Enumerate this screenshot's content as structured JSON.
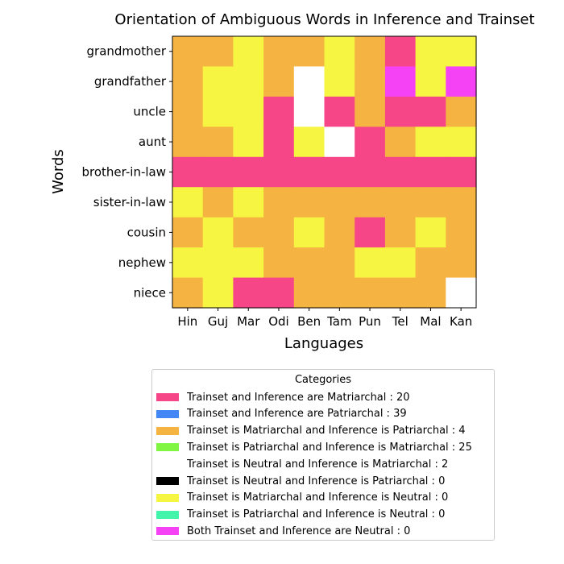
{
  "chart_data": {
    "type": "heatmap",
    "title": "Orientation of Ambiguous Words in Inference and Trainset",
    "xlabel": "Languages",
    "ylabel": "Words",
    "x": [
      "Hin",
      "Guj",
      "Mar",
      "Odi",
      "Ben",
      "Tam",
      "Pun",
      "Tel",
      "Mal",
      "Kan"
    ],
    "y": [
      "grandmother",
      "grandfather",
      "uncle",
      "aunt",
      "brother-in-law",
      "sister-in-law",
      "cousin",
      "nephew",
      "niece"
    ],
    "values": [
      [
        2,
        2,
        6,
        2,
        2,
        6,
        2,
        0,
        6,
        6
      ],
      [
        2,
        6,
        6,
        2,
        9,
        6,
        2,
        8,
        6,
        8
      ],
      [
        2,
        6,
        6,
        0,
        9,
        0,
        2,
        0,
        0,
        2
      ],
      [
        2,
        2,
        6,
        0,
        6,
        9,
        0,
        2,
        6,
        6
      ],
      [
        0,
        0,
        0,
        0,
        0,
        0,
        0,
        0,
        0,
        0
      ],
      [
        6,
        2,
        6,
        2,
        2,
        2,
        2,
        2,
        2,
        2
      ],
      [
        2,
        6,
        2,
        2,
        6,
        2,
        0,
        2,
        6,
        2
      ],
      [
        6,
        6,
        6,
        2,
        2,
        2,
        6,
        6,
        2,
        2
      ],
      [
        2,
        6,
        0,
        0,
        2,
        2,
        2,
        2,
        2,
        9
      ]
    ],
    "legend": {
      "title": "Categories",
      "placement": "below",
      "entries": [
        {
          "label": "Trainset and Inference are Matriarchal : 20",
          "color": "#f74687"
        },
        {
          "label": "Trainset and Inference are Patriarchal : 39",
          "color": "#4287f5"
        },
        {
          "label": "Trainset is Matriarchal and Inference is Patriarchal : 4",
          "color": "#f5b342"
        },
        {
          "label": "Trainset is Patriarchal and Inference is Matriarchal : 25",
          "color": "#80f542"
        },
        {
          "label": "Trainset is Neutral and Inference is Matriarchal : 2",
          "color": "#ffffff"
        },
        {
          "label": "Trainset is Neutral and Inference is Patriarchal : 0",
          "color": "#000000"
        },
        {
          "label": "Trainset is Matriarchal and Inference is Neutral : 0",
          "color": "#f5f542"
        },
        {
          "label": "Trainset is Patriarchal and Inference is Neutral : 0",
          "color": "#42f5aa"
        },
        {
          "label": "Both Trainset and Inference are Neutral : 0",
          "color": "#f542f5"
        }
      ]
    },
    "empty_color": "#ffffff"
  }
}
